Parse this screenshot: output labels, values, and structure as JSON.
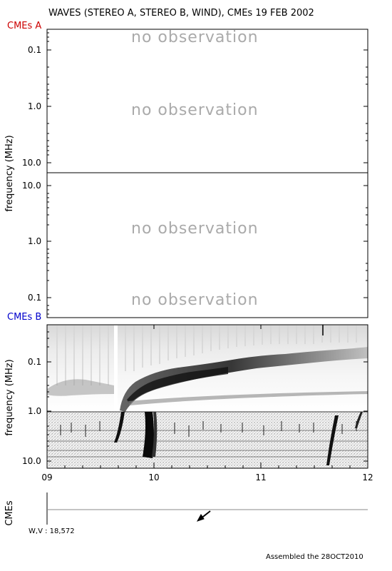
{
  "header": {
    "title": "WAVES (STEREO A, STEREO B, WIND), CMEs  19 FEB 2002",
    "label_a": "CMEs A",
    "label_b": "CMEs B",
    "color_a": "#cc0000",
    "color_b": "#0000cc"
  },
  "chart_data": [
    {
      "type": "heatmap",
      "panel": "STEREO A",
      "ylabel": "",
      "y_scale": "log",
      "y_ticks": [
        "0.1",
        "1.0",
        "10.0"
      ],
      "annotations": [
        "no observation",
        "no observation"
      ]
    },
    {
      "type": "heatmap",
      "panel": "STEREO B",
      "ylabel": "frequency (MHz)",
      "y_scale": "log",
      "y_ticks": [
        "10.0",
        "1.0",
        "0.1"
      ],
      "annotations": [
        "no observation",
        "no observation"
      ]
    },
    {
      "type": "heatmap",
      "panel": "WIND",
      "ylabel": "frequency (MHz)",
      "y_scale": "log",
      "y_ticks": [
        "0.1",
        "1.0",
        "10.0"
      ],
      "x_ticks": [
        "09",
        "10",
        "11",
        "12"
      ],
      "xlim": [
        9,
        12
      ],
      "features": [
        {
          "name": "type III burst",
          "time": 9.68
        },
        {
          "name": "type III burst",
          "time": 9.97
        },
        {
          "name": "type III burst",
          "time": 11.63
        },
        {
          "name": "type III burst",
          "time": 11.97
        }
      ]
    },
    {
      "type": "scatter",
      "panel": "CMEs",
      "ylabel": "CMEs",
      "xlim": [
        9,
        12
      ],
      "markers": [
        {
          "time": 10.5,
          "symbol": "arrow"
        }
      ]
    }
  ],
  "footer": {
    "wv_label": "W,V :  18,572",
    "assembled": "Assembled the 28OCT2010"
  }
}
